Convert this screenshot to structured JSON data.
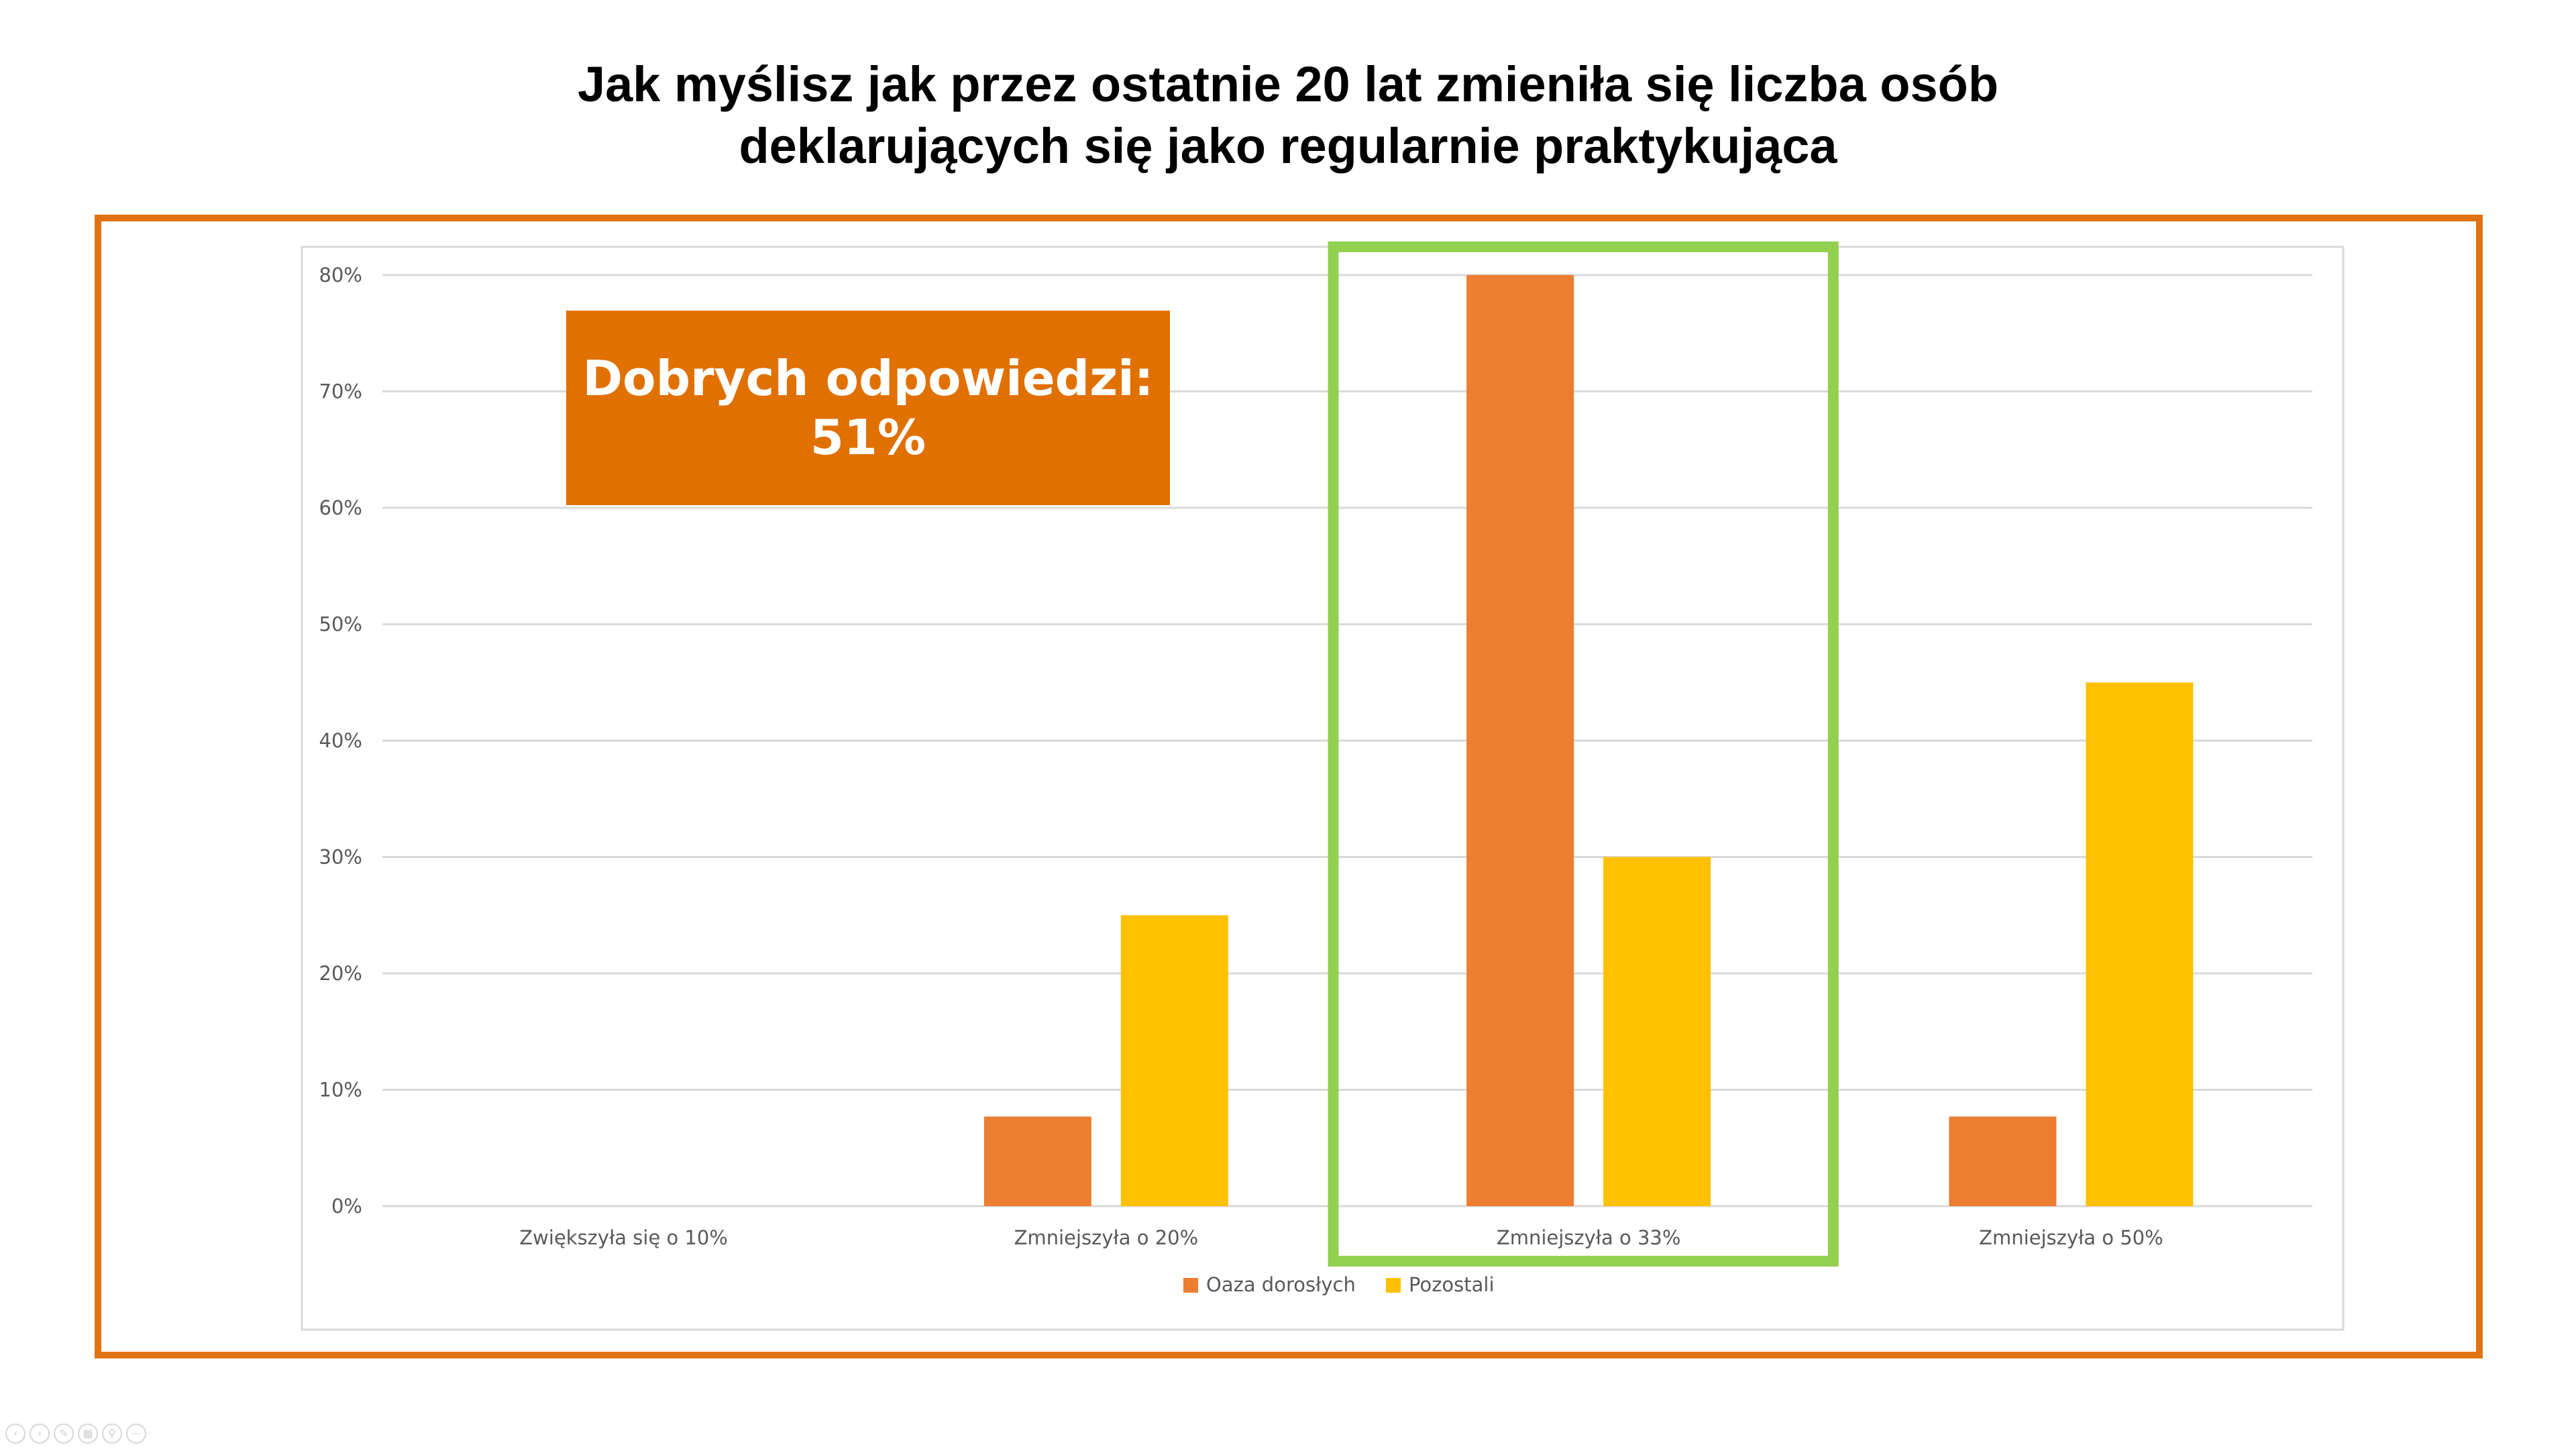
{
  "slide": {
    "title_line1": "Jak myślisz jak przez ostatnie 20 lat zmieniła się liczba osób",
    "title_line2": "deklarujących się jako regularnie praktykująca"
  },
  "callout": {
    "line1": "Dobrych odpowiedzi:",
    "line2": "51%"
  },
  "colors": {
    "frame": "#e07314",
    "callout": "#e07000",
    "highlight": "#92d050",
    "series1": "#ed7d31",
    "series2": "#ffc000",
    "grid": "#d9d9d9",
    "axis_text": "#595959"
  },
  "highlight": {
    "category": "Zmniejszyła o 33%"
  },
  "chart_data": {
    "type": "bar",
    "categories": [
      "Zwiększyła się o 10%",
      "Zmniejszyła o 20%",
      "Zmniejszyła o 33%",
      "Zmniejszyła o 50%"
    ],
    "series": [
      {
        "name": "Oaza dorosłych",
        "values": [
          0,
          7.7,
          80,
          7.7
        ]
      },
      {
        "name": "Pozostali",
        "values": [
          0,
          25,
          30,
          45
        ]
      }
    ],
    "ylim": [
      0,
      80
    ],
    "yticks": [
      "0%",
      "10%",
      "20%",
      "30%",
      "40%",
      "50%",
      "60%",
      "70%",
      "80%"
    ],
    "grid": true,
    "legend": "bottom-center"
  },
  "nav_icons": [
    "back-icon",
    "forward-icon",
    "pen-icon",
    "slides-icon",
    "zoom-icon",
    "more-icon"
  ]
}
